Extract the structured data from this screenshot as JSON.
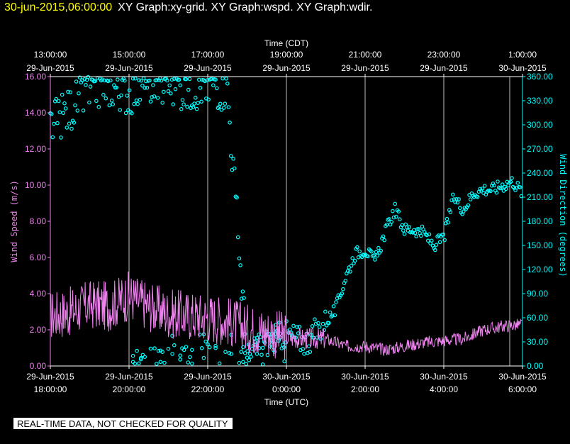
{
  "header": {
    "timestamp": "30-jun-2015,06:00:00",
    "titles": "XY Graph:xy-grid.  XY Graph:wspd.  XY Graph:wdir."
  },
  "notice": "REAL-TIME DATA, NOT CHECKED FOR QUALITY",
  "colors": {
    "background": "#000000",
    "grid": "#ffffff",
    "wind_speed": "#ee82ee",
    "wind_direction": "#00ffff",
    "timestamp": "#ffff00"
  },
  "chart_data": {
    "type": "line",
    "x_top_label": "Time (CDT)",
    "x_bottom_label": "Time (UTC)",
    "xlim_hours_utc": [
      18,
      30
    ],
    "x_top_ticks": [
      {
        "t": "13:00:00",
        "d": "29-Jun-2015"
      },
      {
        "t": "15:00:00",
        "d": "29-Jun-2015"
      },
      {
        "t": "17:00:00",
        "d": "29-Jun-2015"
      },
      {
        "t": "19:00:00",
        "d": "29-Jun-2015"
      },
      {
        "t": "21:00:00",
        "d": "29-Jun-2015"
      },
      {
        "t": "23:00:00",
        "d": "29-Jun-2015"
      },
      {
        "t": "1:00:00",
        "d": "30-Jun-2015"
      }
    ],
    "x_bottom_ticks": [
      {
        "d": "29-Jun-2015",
        "t": "18:00:00"
      },
      {
        "d": "29-Jun-2015",
        "t": "20:00:00"
      },
      {
        "d": "29-Jun-2015",
        "t": "22:00:00"
      },
      {
        "d": "30-Jun-2015",
        "t": "0:00:00"
      },
      {
        "d": "30-Jun-2015",
        "t": "2:00:00"
      },
      {
        "d": "30-Jun-2015",
        "t": "4:00:00"
      },
      {
        "d": "30-Jun-2015",
        "t": "6:00:00"
      }
    ],
    "y_left": {
      "label": "Wind Speed (m/s)",
      "lim": [
        0,
        16
      ],
      "ticks": [
        "0.00",
        "2.00",
        "4.00",
        "6.00",
        "8.00",
        "10.00",
        "12.00",
        "14.00",
        "16.00"
      ]
    },
    "y_right": {
      "label": "Wind Direction (degrees)",
      "lim": [
        0,
        360
      ],
      "ticks": [
        "0.00",
        "30.00",
        "60.00",
        "90.00",
        "120.00",
        "150.00",
        "180.00",
        "210.00",
        "240.00",
        "270.00",
        "300.00",
        "330.00",
        "360.00"
      ]
    },
    "series": [
      {
        "name": "wspd",
        "style": "line",
        "x_hours_utc": [
          18.0,
          18.5,
          19.0,
          19.5,
          20.0,
          20.5,
          21.0,
          21.5,
          22.0,
          22.5,
          23.0,
          23.5,
          24.0,
          24.5,
          25.0,
          25.5,
          26.0,
          26.5,
          27.0,
          27.5,
          28.0,
          28.5,
          29.0,
          29.5,
          30.0
        ],
        "values": [
          2.8,
          3.0,
          3.4,
          3.3,
          3.9,
          3.3,
          2.9,
          2.8,
          2.7,
          2.5,
          2.1,
          1.9,
          1.6,
          1.5,
          1.5,
          1.1,
          1.1,
          0.9,
          1.1,
          1.3,
          1.4,
          1.5,
          2.0,
          2.2,
          2.3
        ]
      },
      {
        "name": "wdir",
        "style": "scatter",
        "x_hours_utc": [
          18.0,
          18.5,
          19.0,
          19.5,
          20.0,
          20.5,
          21.0,
          21.5,
          22.0,
          22.5,
          23.0,
          23.5,
          24.0,
          24.5,
          25.0,
          25.25,
          25.5,
          25.75,
          26.0,
          26.25,
          26.5,
          26.75,
          27.0,
          27.25,
          27.5,
          27.75,
          28.0,
          28.25,
          28.5,
          28.75,
          29.0,
          29.25,
          29.5,
          29.75,
          30.0
        ],
        "values": [
          300,
          320,
          345,
          350,
          340,
          352,
          350,
          345,
          350,
          345,
          10,
          30,
          40,
          30,
          55,
          70,
          110,
          140,
          145,
          130,
          165,
          195,
          170,
          170,
          165,
          150,
          160,
          210,
          195,
          215,
          220,
          220,
          225,
          230,
          215
        ],
        "north_wrap_points": [
          {
            "x": 20.1,
            "v": 5
          },
          {
            "x": 20.3,
            "v": 10
          },
          {
            "x": 20.8,
            "v": 5
          },
          {
            "x": 21.1,
            "v": 15
          },
          {
            "x": 21.3,
            "v": 8
          },
          {
            "x": 21.6,
            "v": 20
          },
          {
            "x": 21.9,
            "v": 10
          },
          {
            "x": 22.2,
            "v": 25
          },
          {
            "x": 22.6,
            "v": 15
          },
          {
            "x": 22.9,
            "v": 5
          }
        ]
      }
    ]
  }
}
